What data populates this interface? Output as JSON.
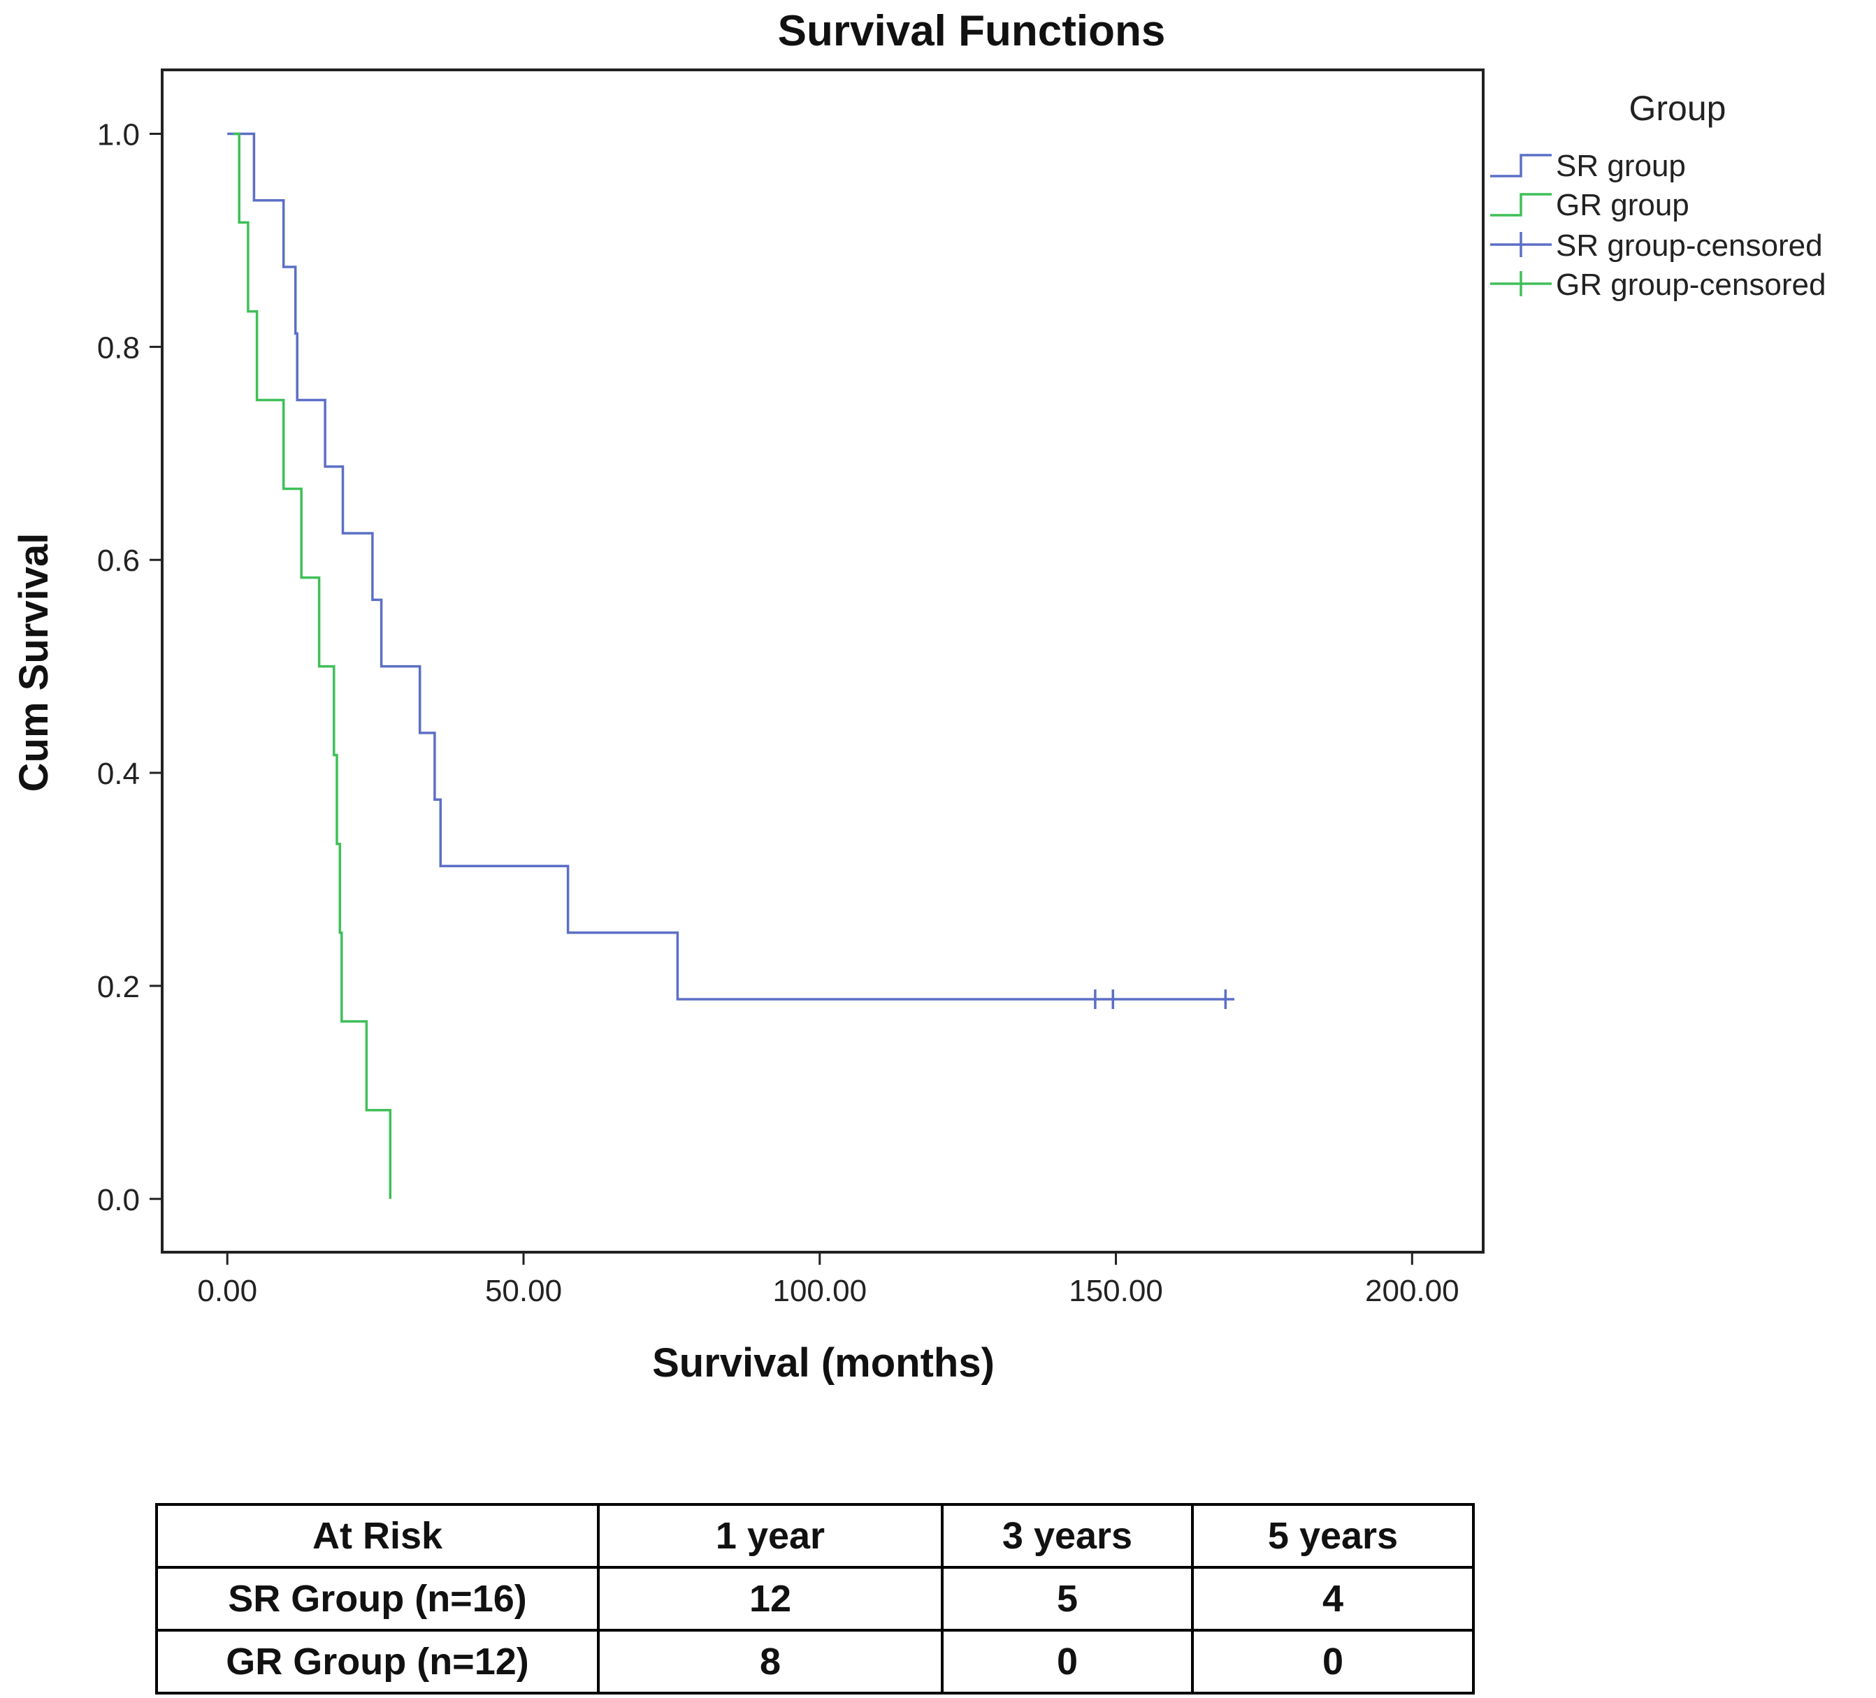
{
  "chart_data": {
    "type": "line",
    "subtype": "kaplan-meier step",
    "title": "Survival Functions",
    "xlabel": "Survival (months)",
    "ylabel": "Cum Survival",
    "xlim": [
      -11,
      212
    ],
    "ylim": [
      -0.05,
      1.06
    ],
    "x_ticks": [
      0,
      50,
      100,
      150,
      200
    ],
    "x_tick_labels": [
      "0.00",
      "50.00",
      "100.00",
      "150.00",
      "200.00"
    ],
    "y_ticks": [
      0.0,
      0.2,
      0.4,
      0.6,
      0.8,
      1.0
    ],
    "y_tick_labels": [
      "0.0",
      "0.2",
      "0.4",
      "0.6",
      "0.8",
      "1.0"
    ],
    "legend_title": "Group",
    "legend_position": "right",
    "series": [
      {
        "name": "SR group",
        "color": "#5b6fc7",
        "steps": [
          [
            0,
            1.0
          ],
          [
            4.5,
            1.0
          ],
          [
            4.5,
            0.9375
          ],
          [
            9.5,
            0.9375
          ],
          [
            9.5,
            0.875
          ],
          [
            11.5,
            0.875
          ],
          [
            11.5,
            0.8125
          ],
          [
            11.8,
            0.8125
          ],
          [
            11.8,
            0.75
          ],
          [
            16.5,
            0.75
          ],
          [
            16.5,
            0.6875
          ],
          [
            19.5,
            0.6875
          ],
          [
            19.5,
            0.625
          ],
          [
            24.5,
            0.625
          ],
          [
            24.5,
            0.5625
          ],
          [
            26,
            0.5625
          ],
          [
            26,
            0.5
          ],
          [
            32.5,
            0.5
          ],
          [
            32.5,
            0.4375
          ],
          [
            35,
            0.4375
          ],
          [
            35,
            0.375
          ],
          [
            36,
            0.375
          ],
          [
            36,
            0.3125
          ],
          [
            57.5,
            0.3125
          ],
          [
            57.5,
            0.25
          ],
          [
            76,
            0.25
          ],
          [
            76,
            0.1875
          ],
          [
            170,
            0.1875
          ]
        ]
      },
      {
        "name": "GR group",
        "color": "#3fbf58",
        "steps": [
          [
            1,
            1.0
          ],
          [
            2,
            1.0
          ],
          [
            2,
            0.9167
          ],
          [
            3.5,
            0.9167
          ],
          [
            3.5,
            0.8333
          ],
          [
            5,
            0.8333
          ],
          [
            5,
            0.75
          ],
          [
            9.5,
            0.75
          ],
          [
            9.5,
            0.6667
          ],
          [
            12.5,
            0.6667
          ],
          [
            12.5,
            0.5833
          ],
          [
            15.5,
            0.5833
          ],
          [
            15.5,
            0.5
          ],
          [
            18,
            0.5
          ],
          [
            18,
            0.4167
          ],
          [
            18.5,
            0.4167
          ],
          [
            18.5,
            0.3333
          ],
          [
            19,
            0.3333
          ],
          [
            19,
            0.25
          ],
          [
            19.3,
            0.25
          ],
          [
            19.3,
            0.1667
          ],
          [
            23.5,
            0.1667
          ],
          [
            23.5,
            0.0833
          ],
          [
            27.5,
            0.0833
          ],
          [
            27.5,
            0.0
          ]
        ]
      }
    ],
    "censored": [
      {
        "series": "SR group",
        "points": [
          [
            146.5,
            0.1875
          ],
          [
            149.5,
            0.1875
          ],
          [
            168.5,
            0.1875
          ]
        ]
      }
    ],
    "legend_entries": [
      "SR group",
      "GR group",
      "SR group-censored",
      "GR group-censored"
    ]
  },
  "risk_table": {
    "headers": [
      "At Risk",
      "1 year",
      "3 years",
      "5 years"
    ],
    "rows": [
      [
        "SR Group (n=16)",
        "12",
        "5",
        "4"
      ],
      [
        "GR Group (n=12)",
        "8",
        "0",
        "0"
      ]
    ]
  }
}
